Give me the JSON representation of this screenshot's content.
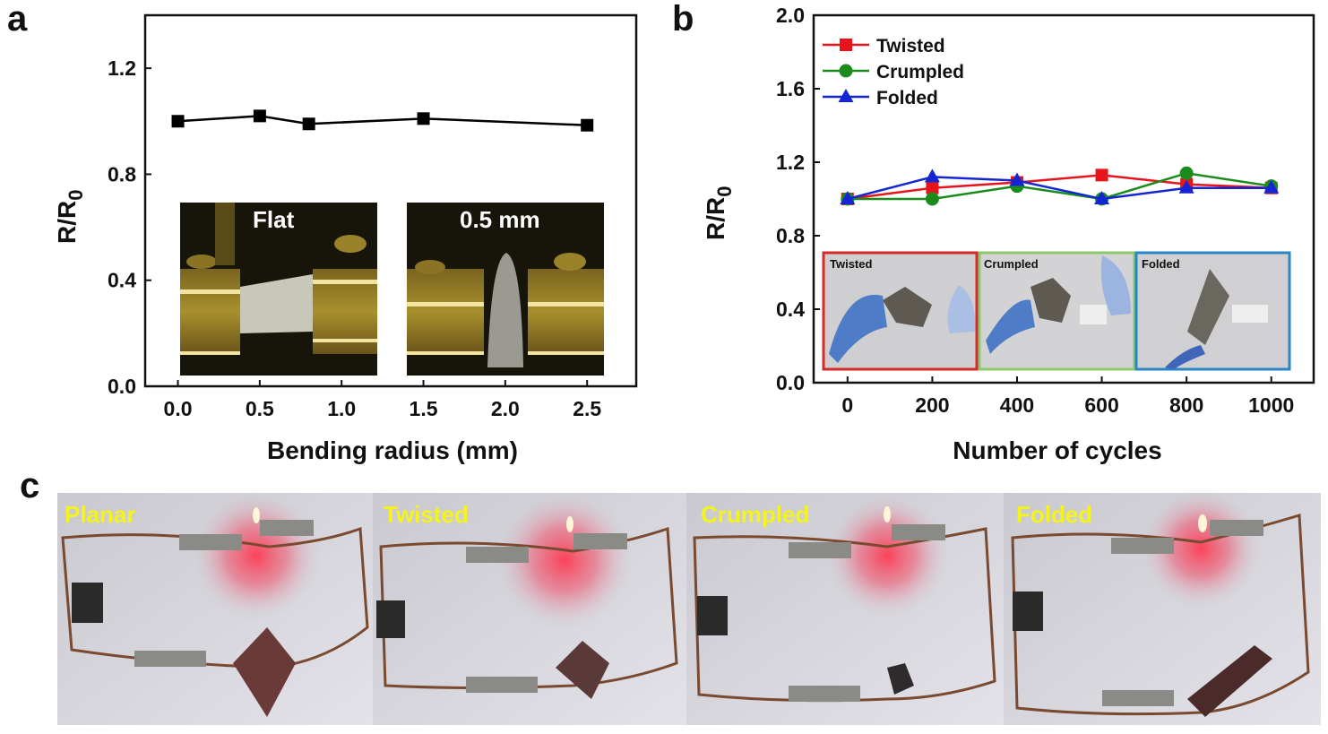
{
  "panels": {
    "a": "a",
    "b": "b",
    "c": "c"
  },
  "chart_data": [
    {
      "id": "a",
      "type": "line",
      "xlabel": "Bending radius (mm)",
      "ylabel_main": "R/R",
      "ylabel_sub": "0",
      "xlim": [
        -0.2,
        2.8
      ],
      "ylim": [
        0.0,
        1.4
      ],
      "xticks": [
        "0.0",
        "0.5",
        "1.0",
        "1.5",
        "2.0",
        "2.5"
      ],
      "yticks": [
        "0.0",
        "0.4",
        "0.8",
        "1.2"
      ],
      "series": [
        {
          "color": "#000000",
          "marker": "square",
          "x": [
            0.0,
            0.5,
            0.8,
            1.5,
            2.5
          ],
          "y": [
            1.0,
            1.02,
            0.99,
            1.01,
            0.985
          ]
        }
      ],
      "insets": [
        {
          "label": "Flat"
        },
        {
          "label": "0.5 mm"
        }
      ]
    },
    {
      "id": "b",
      "type": "line",
      "xlabel": "Number of cycles",
      "ylabel_main": "R/R",
      "ylabel_sub": "0",
      "xlim": [
        -80,
        1100
      ],
      "ylim": [
        0.0,
        2.0
      ],
      "xticks": [
        "0",
        "200",
        "400",
        "600",
        "800",
        "1000"
      ],
      "yticks": [
        "0.0",
        "0.4",
        "0.8",
        "1.2",
        "1.6",
        "2.0"
      ],
      "legend_position": "top-left",
      "series": [
        {
          "name": "Twisted",
          "color": "#e8141b",
          "marker": "square",
          "x": [
            0,
            200,
            400,
            600,
            800,
            1000
          ],
          "y": [
            1.0,
            1.06,
            1.09,
            1.13,
            1.08,
            1.06
          ]
        },
        {
          "name": "Crumpled",
          "color": "#1b8c1b",
          "marker": "circle",
          "x": [
            0,
            200,
            400,
            600,
            800,
            1000
          ],
          "y": [
            1.0,
            1.0,
            1.07,
            1.0,
            1.14,
            1.07
          ]
        },
        {
          "name": "Folded",
          "color": "#1426d4",
          "marker": "triangle",
          "x": [
            0,
            200,
            400,
            600,
            800,
            1000
          ],
          "y": [
            1.0,
            1.12,
            1.1,
            1.0,
            1.06,
            1.06
          ]
        }
      ],
      "insets": [
        {
          "label": "Twisted",
          "border": "#d42a2a"
        },
        {
          "label": "Crumpled",
          "border": "#8cc86a"
        },
        {
          "label": "Folded",
          "border": "#2a86c4"
        }
      ]
    }
  ],
  "photos_c": [
    {
      "label": "Planar"
    },
    {
      "label": "Twisted"
    },
    {
      "label": "Crumpled"
    },
    {
      "label": "Folded"
    }
  ]
}
